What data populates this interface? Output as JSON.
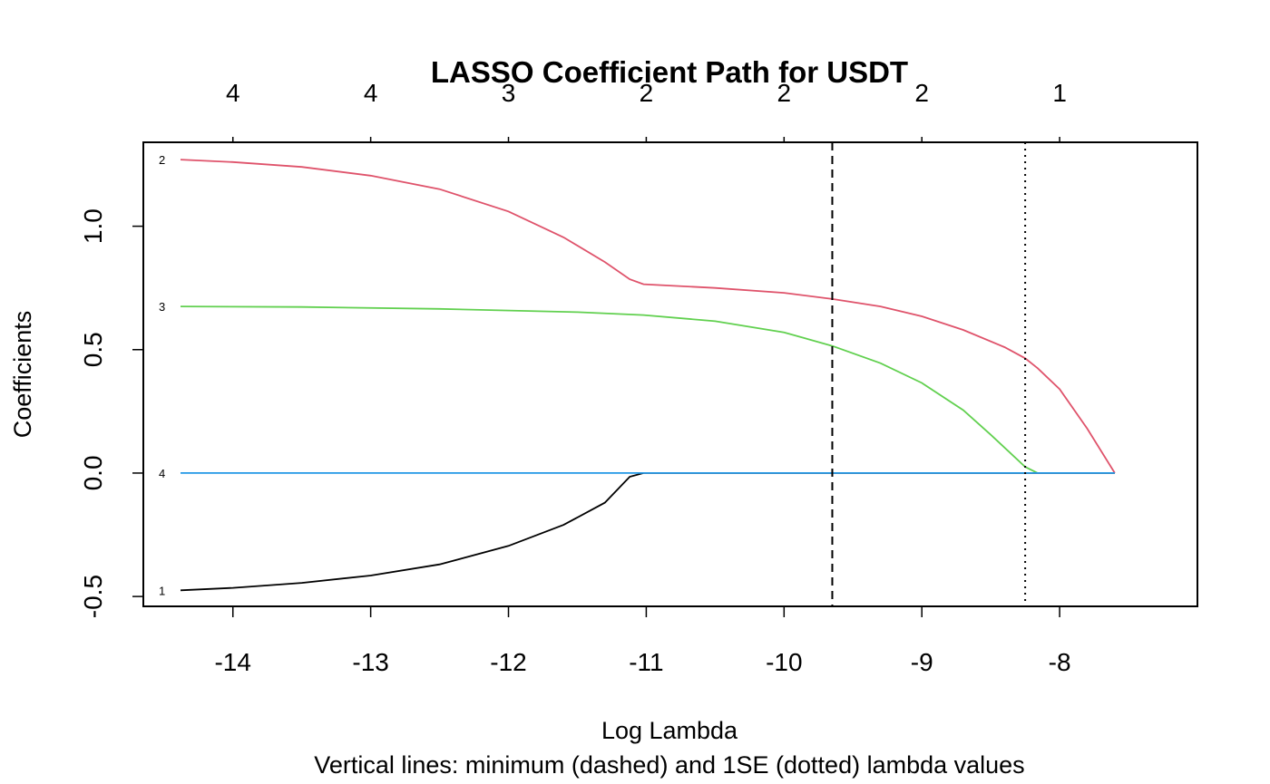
{
  "chart_data": {
    "type": "line",
    "title": "LASSO Coefficient Path for USDT",
    "xlabel": "Log Lambda",
    "ylabel": "Coefficients",
    "subtitle": "Vertical lines: minimum (dashed) and 1SE (dotted) lambda values",
    "xlim": [
      -14.65,
      -7.0
    ],
    "ylim": [
      -0.54,
      1.34
    ],
    "x_ticks": [
      -14,
      -13,
      -12,
      -11,
      -10,
      -9,
      -8
    ],
    "x_tick_labels": [
      "-14",
      "-13",
      "-12",
      "-11",
      "-10",
      "-9",
      "-8"
    ],
    "y_ticks": [
      -0.5,
      0.0,
      0.5,
      1.0
    ],
    "y_tick_labels": [
      "-0.5",
      "0.0",
      "0.5",
      "1.0"
    ],
    "top_ticks": [
      -14,
      -13,
      -12,
      -11,
      -10,
      -9,
      -8
    ],
    "top_tick_labels": [
      "4",
      "4",
      "3",
      "2",
      "2",
      "2",
      "1"
    ],
    "grid": false,
    "legend": "none",
    "vlines": [
      {
        "x": -9.65,
        "style": "dashed"
      },
      {
        "x": -8.25,
        "style": "dotted"
      }
    ],
    "series": [
      {
        "name": "1",
        "color": "#000000",
        "x": [
          -14.38,
          -14.0,
          -13.5,
          -13.0,
          -12.5,
          -12.0,
          -11.6,
          -11.3,
          -11.12,
          -11.02,
          -10.5,
          -10.0,
          -9.5,
          -9.0,
          -8.5,
          -8.16,
          -7.6
        ],
        "y": [
          -0.475,
          -0.465,
          -0.445,
          -0.415,
          -0.37,
          -0.295,
          -0.21,
          -0.12,
          -0.015,
          0.0,
          0.0,
          0.0,
          0.0,
          0.0,
          0.0,
          0.0,
          0.0
        ]
      },
      {
        "name": "2",
        "color": "#DF536B",
        "x": [
          -14.38,
          -14.0,
          -13.5,
          -13.0,
          -12.5,
          -12.0,
          -11.6,
          -11.3,
          -11.12,
          -11.02,
          -10.5,
          -10.0,
          -9.65,
          -9.3,
          -9.0,
          -8.7,
          -8.4,
          -8.25,
          -8.16,
          -8.0,
          -7.8,
          -7.6
        ],
        "y": [
          1.27,
          1.26,
          1.24,
          1.205,
          1.15,
          1.06,
          0.955,
          0.855,
          0.785,
          0.765,
          0.75,
          0.73,
          0.705,
          0.675,
          0.635,
          0.58,
          0.51,
          0.465,
          0.425,
          0.34,
          0.18,
          0.0
        ]
      },
      {
        "name": "3",
        "color": "#61D04F",
        "x": [
          -14.38,
          -13.5,
          -12.5,
          -11.5,
          -11.02,
          -10.5,
          -10.0,
          -9.65,
          -9.3,
          -9.0,
          -8.7,
          -8.5,
          -8.25,
          -8.16
        ],
        "y": [
          0.675,
          0.673,
          0.665,
          0.652,
          0.64,
          0.615,
          0.57,
          0.515,
          0.445,
          0.365,
          0.255,
          0.155,
          0.025,
          0.0
        ]
      },
      {
        "name": "4",
        "color": "#2297E6",
        "x": [
          -14.38,
          -11.02,
          -8.16,
          -7.6
        ],
        "y": [
          0.0,
          0.0,
          0.0,
          0.0
        ]
      }
    ]
  }
}
